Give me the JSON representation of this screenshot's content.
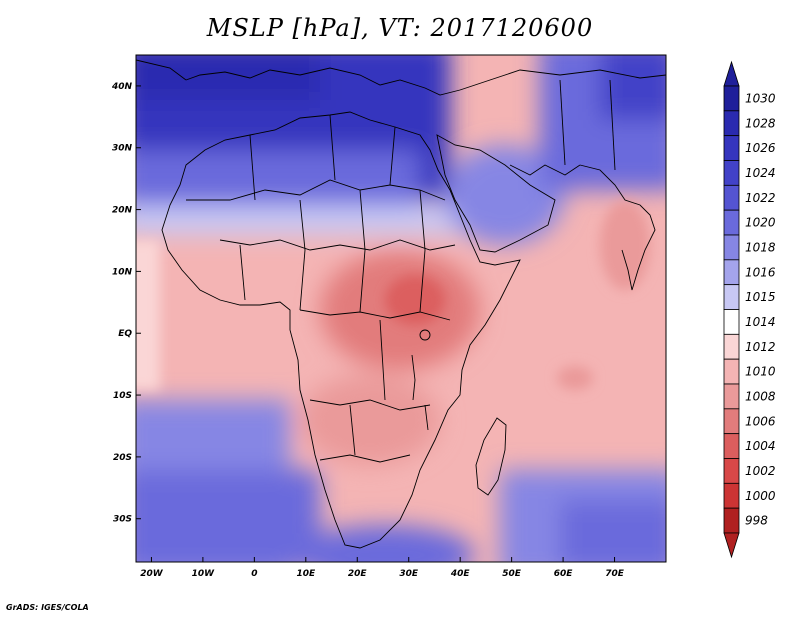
{
  "title": "MSLP [hPa], VT: 2017120600",
  "credit": "GrADS: IGES/COLA",
  "map": {
    "lon_range": [
      -23,
      80
    ],
    "lat_range": [
      -37,
      45
    ],
    "lon_ticks": [
      {
        "lon": -20,
        "label": "20W"
      },
      {
        "lon": -10,
        "label": "10W"
      },
      {
        "lon": 0,
        "label": "0"
      },
      {
        "lon": 10,
        "label": "10E"
      },
      {
        "lon": 20,
        "label": "20E"
      },
      {
        "lon": 30,
        "label": "30E"
      },
      {
        "lon": 40,
        "label": "40E"
      },
      {
        "lon": 50,
        "label": "50E"
      },
      {
        "lon": 60,
        "label": "60E"
      },
      {
        "lon": 70,
        "label": "70E"
      }
    ],
    "lat_ticks": [
      {
        "lat": 40,
        "label": "40N"
      },
      {
        "lat": 30,
        "label": "30N"
      },
      {
        "lat": 20,
        "label": "20N"
      },
      {
        "lat": 10,
        "label": "10N"
      },
      {
        "lat": 0,
        "label": "EQ"
      },
      {
        "lat": -10,
        "label": "10S"
      },
      {
        "lat": -20,
        "label": "20S"
      },
      {
        "lat": -30,
        "label": "30S"
      }
    ]
  },
  "colorbar": {
    "levels": [
      {
        "value": "1030",
        "color": "#1f1f9a"
      },
      {
        "value": "1028",
        "color": "#2a2ab0"
      },
      {
        "value": "1026",
        "color": "#3535be"
      },
      {
        "value": "1024",
        "color": "#4242c8"
      },
      {
        "value": "1022",
        "color": "#5454d2"
      },
      {
        "value": "1020",
        "color": "#6a6adc"
      },
      {
        "value": "1018",
        "color": "#8686e4"
      },
      {
        "value": "1016",
        "color": "#a4a4ec"
      },
      {
        "value": "1015",
        "color": "#c8c8f4"
      },
      {
        "value": "1014",
        "color": "#ffffff"
      },
      {
        "value": "1012",
        "color": "#fad6d6"
      },
      {
        "value": "1010",
        "color": "#f4b4b4"
      },
      {
        "value": "1008",
        "color": "#ea9a9a"
      },
      {
        "value": "1006",
        "color": "#e27c7c"
      },
      {
        "value": "1004",
        "color": "#dc5e5e"
      },
      {
        "value": "1002",
        "color": "#d84848"
      },
      {
        "value": "1000",
        "color": "#cc3434"
      },
      {
        "value": "998",
        "color": "#b02020"
      }
    ]
  }
}
